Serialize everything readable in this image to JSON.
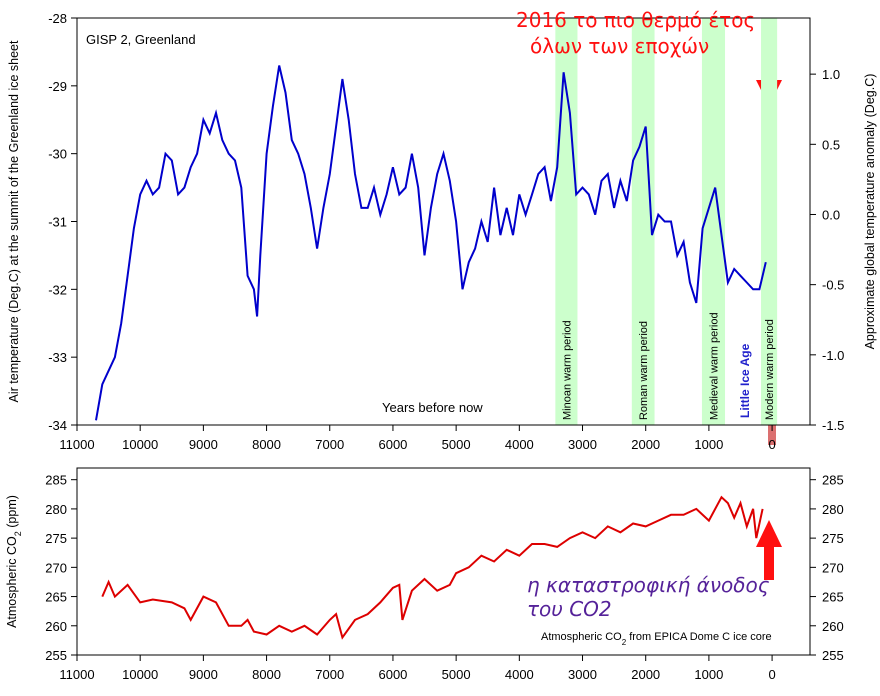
{
  "chart_data": [
    {
      "type": "line",
      "title": "GISP 2, Greenland",
      "xlabel": "Years before now",
      "ylabel": "Air temperature (Deg.C) at the summit of the Greenland ice sheet",
      "y2label": "Approximate global temperature anomaly (Deg.C)",
      "color": "#0000cc",
      "x": [
        10700,
        10600,
        10400,
        10300,
        10200,
        10100,
        10000,
        9900,
        9800,
        9700,
        9600,
        9500,
        9400,
        9300,
        9200,
        9100,
        9000,
        8900,
        8800,
        8700,
        8600,
        8500,
        8400,
        8300,
        8200,
        8150,
        8100,
        8000,
        7900,
        7800,
        7700,
        7600,
        7500,
        7400,
        7300,
        7200,
        7100,
        7000,
        6900,
        6800,
        6700,
        6600,
        6500,
        6400,
        6300,
        6200,
        6100,
        6000,
        5900,
        5800,
        5700,
        5600,
        5500,
        5400,
        5300,
        5200,
        5100,
        5000,
        4900,
        4800,
        4700,
        4600,
        4500,
        4400,
        4300,
        4200,
        4100,
        4000,
        3900,
        3800,
        3700,
        3600,
        3500,
        3400,
        3300,
        3200,
        3100,
        3000,
        2900,
        2800,
        2700,
        2600,
        2500,
        2400,
        2300,
        2200,
        2100,
        2000,
        1950,
        1900,
        1800,
        1700,
        1600,
        1500,
        1400,
        1300,
        1200,
        1100,
        1000,
        900,
        800,
        700,
        600,
        500,
        400,
        300,
        200,
        150,
        100
      ],
      "values": [
        -33.93,
        -33.4,
        -33.0,
        -32.5,
        -31.8,
        -31.1,
        -30.6,
        -30.4,
        -30.6,
        -30.5,
        -30.0,
        -30.1,
        -30.6,
        -30.5,
        -30.2,
        -30.0,
        -29.5,
        -29.7,
        -29.4,
        -29.8,
        -30.0,
        -30.1,
        -30.5,
        -31.8,
        -32.0,
        -32.4,
        -31.5,
        -30.0,
        -29.3,
        -28.7,
        -29.1,
        -29.8,
        -30.0,
        -30.3,
        -30.8,
        -31.4,
        -30.8,
        -30.3,
        -29.6,
        -28.9,
        -29.5,
        -30.3,
        -30.8,
        -30.8,
        -30.5,
        -30.9,
        -30.6,
        -30.2,
        -30.6,
        -30.5,
        -30.0,
        -30.5,
        -31.5,
        -30.8,
        -30.3,
        -30.0,
        -30.4,
        -31.0,
        -32.0,
        -31.6,
        -31.4,
        -31.0,
        -31.3,
        -30.5,
        -31.2,
        -30.8,
        -31.2,
        -30.6,
        -30.9,
        -30.6,
        -30.3,
        -30.2,
        -30.7,
        -30.2,
        -28.8,
        -29.4,
        -30.6,
        -30.5,
        -30.6,
        -30.9,
        -30.4,
        -30.3,
        -30.8,
        -30.4,
        -30.7,
        -30.1,
        -29.9,
        -29.6,
        -30.4,
        -31.2,
        -30.9,
        -31.0,
        -31.0,
        -31.5,
        -31.3,
        -31.9,
        -32.2,
        -31.1,
        -30.8,
        -30.5,
        -31.2,
        -31.9,
        -31.7,
        -31.8,
        -31.9,
        -32.0,
        -32.0,
        -31.8,
        -31.6
      ],
      "xlim": [
        11000,
        -600
      ],
      "xticks": [
        11000,
        10000,
        9000,
        8000,
        7000,
        6000,
        5000,
        4000,
        3000,
        2000,
        1000,
        0
      ],
      "ylim": [
        -34,
        -28
      ],
      "yticks": [
        -28,
        -29,
        -30,
        -31,
        -32,
        -33,
        -34
      ],
      "y2lim": [
        -1.5,
        1.4
      ],
      "y2ticks": [
        {
          "value": 1.0,
          "label": "1.0"
        },
        0.5,
        {
          "value": 0.0,
          "label": "0.0"
        },
        -0.5,
        {
          "value": -1.0,
          "label": "-1.0"
        },
        -1.5
      ],
      "periods": [
        {
          "label": "Minoan warm period",
          "from": 3430,
          "to": 3080
        },
        {
          "label": "Roman warm period",
          "from": 2220,
          "to": 1860
        },
        {
          "label": "Medieval warm period",
          "from": 1110,
          "to": 745
        },
        {
          "label": "Modern warm period",
          "from": 175,
          "to": -80
        }
      ],
      "period_color": "#ccffcc",
      "little_ice_age": "Little Ice Age",
      "annotation": [
        "2016 το πιο θερμό έτος",
        "όλων των εποχών"
      ]
    },
    {
      "type": "line",
      "ylabel": [
        "Atmospheric CO",
        "2",
        " (ppm)"
      ],
      "source": [
        "Atmospheric CO",
        "2",
        " from EPICA Dome C ice core"
      ],
      "color": "#dd0000",
      "x": [
        10600,
        10500,
        10400,
        10200,
        10000,
        9800,
        9500,
        9300,
        9200,
        9000,
        8800,
        8600,
        8400,
        8300,
        8200,
        8000,
        7800,
        7600,
        7400,
        7200,
        7000,
        6900,
        6800,
        6600,
        6400,
        6200,
        6000,
        5900,
        5850,
        5700,
        5500,
        5300,
        5100,
        5000,
        4800,
        4600,
        4400,
        4200,
        4000,
        3800,
        3600,
        3400,
        3200,
        3000,
        2800,
        2600,
        2400,
        2200,
        2000,
        1800,
        1600,
        1400,
        1200,
        1000,
        800,
        700,
        600,
        500,
        400,
        300,
        250,
        150
      ],
      "values": [
        265,
        267.5,
        265,
        267,
        264,
        264.5,
        264,
        263,
        261,
        265,
        264,
        260,
        260,
        261,
        259,
        258.5,
        260,
        259,
        260,
        258.5,
        261,
        262,
        258,
        261,
        262,
        264,
        266.5,
        267,
        261,
        266,
        268,
        266,
        267,
        269,
        270,
        272,
        271,
        273,
        272,
        274,
        274,
        273.5,
        275,
        276,
        275,
        277,
        276,
        277.5,
        277,
        278,
        279,
        279,
        280,
        278,
        282,
        281,
        278.5,
        281,
        277,
        280,
        275,
        280
      ],
      "xlim": [
        11000,
        -600
      ],
      "xticks": [
        11000,
        10000,
        9000,
        8000,
        7000,
        6000,
        5000,
        4000,
        3000,
        2000,
        1000,
        0
      ],
      "ylim": [
        255,
        287
      ],
      "yticks": [
        255,
        260,
        265,
        270,
        275,
        280,
        285
      ],
      "annotation": [
        "η καταστροφική άνοδος",
        "του CO2"
      ]
    }
  ]
}
